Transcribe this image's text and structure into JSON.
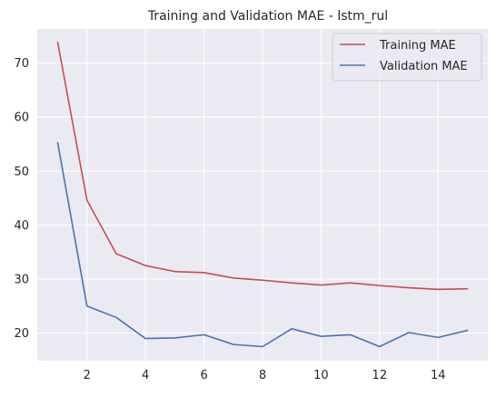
{
  "chart_data": {
    "type": "line",
    "title": "Training and Validation MAE - lstm_rul",
    "xlabel": "",
    "ylabel": "",
    "xlim": [
      0.3,
      15.7
    ],
    "ylim": [
      14.9,
      76.3
    ],
    "xticks": [
      2,
      4,
      6,
      8,
      10,
      12,
      14
    ],
    "yticks": [
      20,
      30,
      40,
      50,
      60,
      70
    ],
    "grid": true,
    "legend_position": "top-right",
    "x": [
      1,
      2,
      3,
      4,
      5,
      6,
      7,
      8,
      9,
      10,
      11,
      12,
      13,
      14,
      15
    ],
    "series": [
      {
        "name": "Training MAE",
        "color": "#c44e52",
        "values": [
          73.8,
          44.6,
          34.7,
          32.5,
          31.4,
          31.2,
          30.2,
          29.8,
          29.3,
          28.9,
          29.3,
          28.8,
          28.4,
          28.1,
          28.2
        ]
      },
      {
        "name": "Validation MAE",
        "color": "#4c72b0",
        "values": [
          55.2,
          25.0,
          22.9,
          19.0,
          19.1,
          19.7,
          17.9,
          17.5,
          20.8,
          19.4,
          19.7,
          17.5,
          20.1,
          19.2,
          20.5
        ]
      }
    ]
  }
}
